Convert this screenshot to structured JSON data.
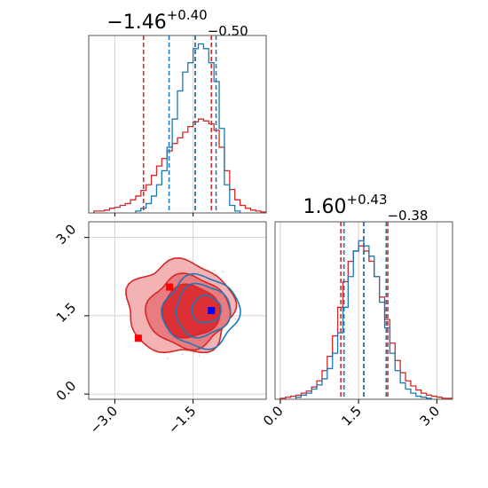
{
  "colors": {
    "blue": "#1f77b4",
    "red": "#d62728",
    "grid": "#d0d0d0"
  },
  "chart_data": {
    "type": "corner",
    "titles": {
      "x": {
        "value": "−1.46",
        "plus": "+0.40",
        "minus": "−0.50"
      },
      "y": {
        "value": "1.60",
        "plus": "+0.43",
        "minus": "−0.38"
      }
    },
    "x_ticks": [
      {
        "v": -3.0,
        "label": "−3.0"
      },
      {
        "v": -1.5,
        "label": "−1.5"
      }
    ],
    "y_ticks": [
      {
        "v": 0.0,
        "label": "0.0"
      },
      {
        "v": 1.5,
        "label": "1.5"
      },
      {
        "v": 3.0,
        "label": "3.0"
      }
    ],
    "xlim": [
      -3.5,
      -0.1
    ],
    "ylim": [
      -0.1,
      3.3
    ],
    "grid": true,
    "x_quantiles": {
      "blue": [
        -1.96,
        -1.46,
        -1.06
      ],
      "red": [
        -2.45,
        -1.46,
        -1.15
      ]
    },
    "y_quantiles": {
      "blue": [
        1.22,
        1.6,
        2.03
      ],
      "red": [
        1.16,
        1.6,
        2.06
      ]
    },
    "markers": [
      {
        "color": "blue",
        "x": -1.15,
        "y": 1.6
      },
      {
        "color": "red",
        "x": -2.55,
        "y": 1.07
      },
      {
        "color": "red",
        "x": -1.95,
        "y": 2.05
      }
    ],
    "hist_x_blue": {
      "bins": [
        -2.6,
        -2.5,
        -2.4,
        -2.3,
        -2.2,
        -2.1,
        -2.0,
        -1.9,
        -1.8,
        -1.7,
        -1.6,
        -1.5,
        -1.4,
        -1.3,
        -1.2,
        -1.1,
        -1.0,
        -0.9,
        -0.8,
        -0.7
      ],
      "values": [
        2,
        5,
        10,
        18,
        30,
        45,
        70,
        100,
        130,
        150,
        160,
        175,
        180,
        175,
        160,
        140,
        90,
        30,
        8,
        2
      ]
    },
    "hist_x_red": {
      "bins": [
        -3.4,
        -3.3,
        -3.2,
        -3.1,
        -3.0,
        -2.9,
        -2.8,
        -2.7,
        -2.6,
        -2.5,
        -2.4,
        -2.3,
        -2.2,
        -2.1,
        -2.0,
        -1.9,
        -1.8,
        -1.7,
        -1.6,
        -1.5,
        -1.4,
        -1.3,
        -1.2,
        -1.1,
        -1.0,
        -0.9,
        -0.8,
        -0.7,
        -0.6,
        -0.5,
        -0.4,
        -0.3,
        -0.2
      ],
      "values": [
        2,
        2,
        3,
        5,
        6,
        8,
        10,
        14,
        18,
        24,
        30,
        40,
        50,
        58,
        66,
        74,
        80,
        86,
        92,
        97,
        100,
        98,
        95,
        88,
        70,
        45,
        25,
        14,
        8,
        5,
        3,
        2,
        1
      ]
    },
    "hist_y_blue": {
      "bins": [
        0.3,
        0.4,
        0.5,
        0.6,
        0.7,
        0.8,
        0.9,
        1.0,
        1.1,
        1.2,
        1.3,
        1.4,
        1.5,
        1.6,
        1.7,
        1.8,
        1.9,
        2.0,
        2.1,
        2.2,
        2.3,
        2.4,
        2.5,
        2.6,
        2.7,
        2.8
      ],
      "values": [
        2,
        4,
        6,
        10,
        14,
        20,
        30,
        45,
        65,
        90,
        120,
        145,
        155,
        150,
        140,
        120,
        95,
        70,
        45,
        28,
        16,
        10,
        6,
        3,
        2,
        1
      ]
    },
    "hist_y_red": {
      "bins": [
        0.0,
        0.1,
        0.2,
        0.3,
        0.4,
        0.5,
        0.6,
        0.7,
        0.8,
        0.9,
        1.0,
        1.1,
        1.2,
        1.3,
        1.4,
        1.5,
        1.6,
        1.7,
        1.8,
        1.9,
        2.0,
        2.1,
        2.2,
        2.3,
        2.4,
        2.5,
        2.6,
        2.7,
        2.8,
        2.9,
        3.0,
        3.1,
        3.2
      ],
      "values": [
        1,
        2,
        3,
        4,
        6,
        8,
        12,
        18,
        28,
        42,
        62,
        90,
        115,
        135,
        145,
        150,
        145,
        135,
        120,
        100,
        78,
        55,
        38,
        26,
        18,
        13,
        9,
        6,
        4,
        3,
        2,
        1,
        1
      ]
    }
  }
}
